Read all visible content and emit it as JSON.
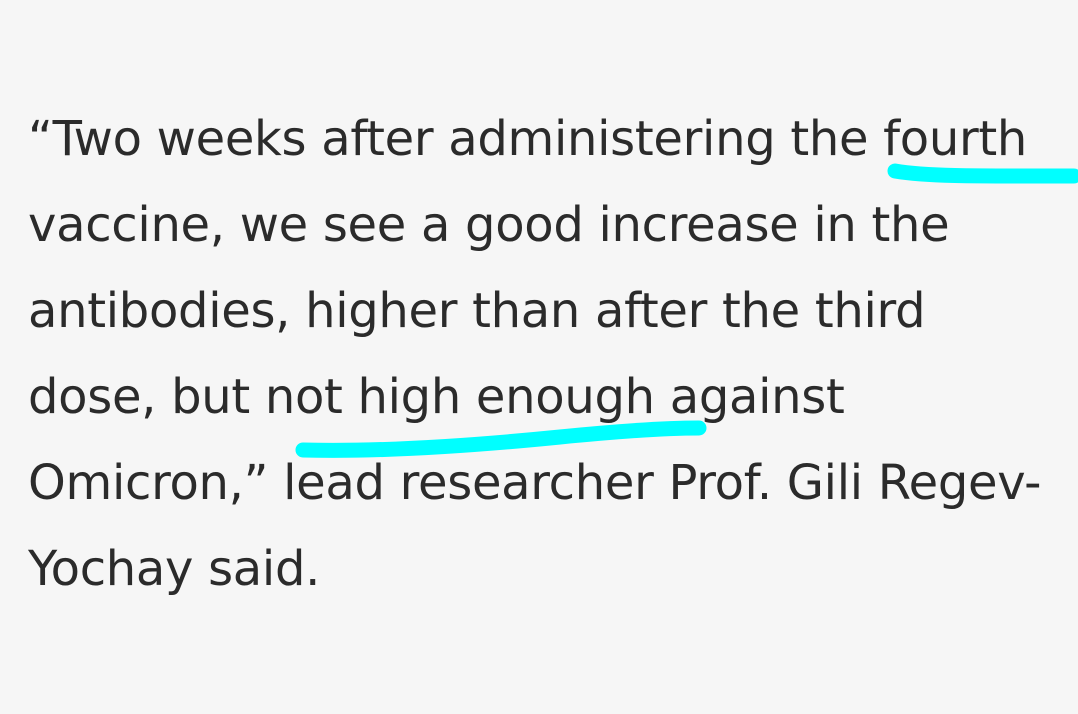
{
  "article": {
    "quote_lines": [
      "“Two weeks after administering the fourth",
      "vaccine, we see a good increase in the",
      "antibodies, higher than after the third",
      "dose, but not high enough against",
      "Omicron,” lead researcher Prof. Gili Regev-",
      "Yochay said."
    ]
  },
  "highlights": {
    "color": "#00ffff",
    "marked_phrases": [
      "fourth",
      "not high enough"
    ]
  }
}
